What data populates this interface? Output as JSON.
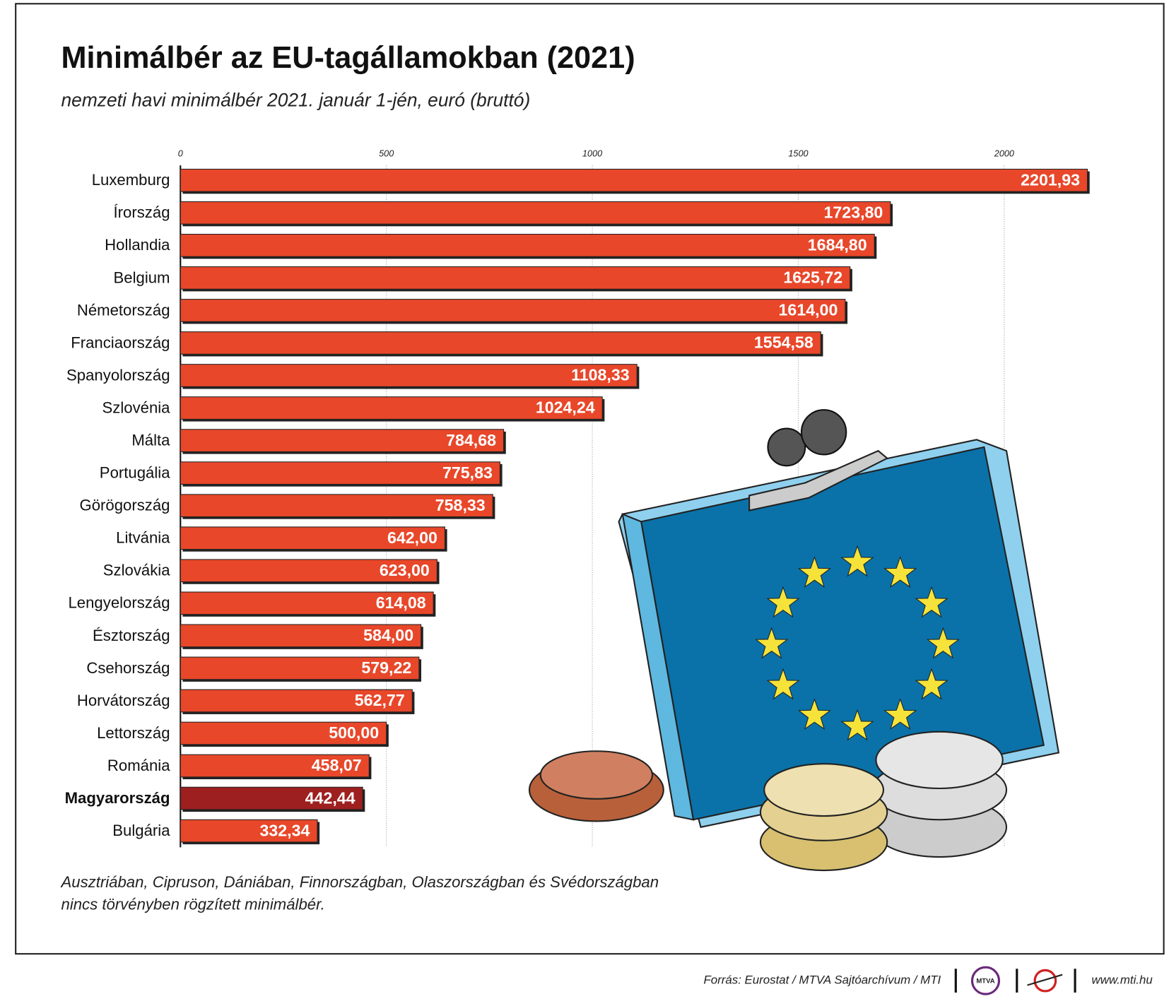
{
  "chart_data": {
    "type": "barh",
    "title": "Minimálbér az EU-tagállamokban (2021)",
    "subtitle": "nemzeti havi minimálbér 2021. január 1-jén, euró (bruttó)",
    "categories": [
      "Luxemburg",
      "Írország",
      "Hollandia",
      "Belgium",
      "Németország",
      "Franciaország",
      "Spanyolország",
      "Szlovénia",
      "Málta",
      "Portugália",
      "Görögország",
      "Litvánia",
      "Szlovákia",
      "Lengyelország",
      "Észtország",
      "Csehország",
      "Horvátország",
      "Lettország",
      "Románia",
      "Magyarország",
      "Bulgária"
    ],
    "values": [
      2201.93,
      1723.8,
      1684.8,
      1625.72,
      1614.0,
      1554.58,
      1108.33,
      1024.24,
      784.68,
      775.83,
      758.33,
      642.0,
      623.0,
      614.08,
      584.0,
      579.22,
      562.77,
      500.0,
      458.07,
      442.44,
      332.34
    ],
    "value_labels": [
      "2201,93",
      "1723,80",
      "1684,80",
      "1625,72",
      "1614,00",
      "1554,58",
      "1108,33",
      "1024,24",
      "784,68",
      "775,83",
      "758,33",
      "642,00",
      "623,00",
      "614,08",
      "584,00",
      "579,22",
      "562,77",
      "500,00",
      "458,07",
      "442,44",
      "332,34"
    ],
    "colors": [
      "#e8472a",
      "#e8472a",
      "#e8472a",
      "#e8472a",
      "#e8472a",
      "#e8472a",
      "#e8472a",
      "#e8472a",
      "#e8472a",
      "#e8472a",
      "#e8472a",
      "#e8472a",
      "#e8472a",
      "#e8472a",
      "#e8472a",
      "#e8472a",
      "#e8472a",
      "#e8472a",
      "#e8472a",
      "#9e1f1f",
      "#e8472a"
    ],
    "bold_categories": [
      false,
      false,
      false,
      false,
      false,
      false,
      false,
      false,
      false,
      false,
      false,
      false,
      false,
      false,
      false,
      false,
      false,
      false,
      false,
      true,
      false
    ],
    "xlim": [
      0,
      2250
    ],
    "xticks": [
      0,
      500,
      1000,
      1500,
      2000
    ],
    "grid": true,
    "note_lines": [
      "Ausztriában, Cipruson, Dániában, Finnországban, Olaszországban és Svédországban",
      "nincs törvényben rögzített minimálbér."
    ],
    "source": "Forrás: Eurostat / MTVA Sajtóarchívum / MTI",
    "logo": "MTVA",
    "website": "www.mti.hu"
  }
}
